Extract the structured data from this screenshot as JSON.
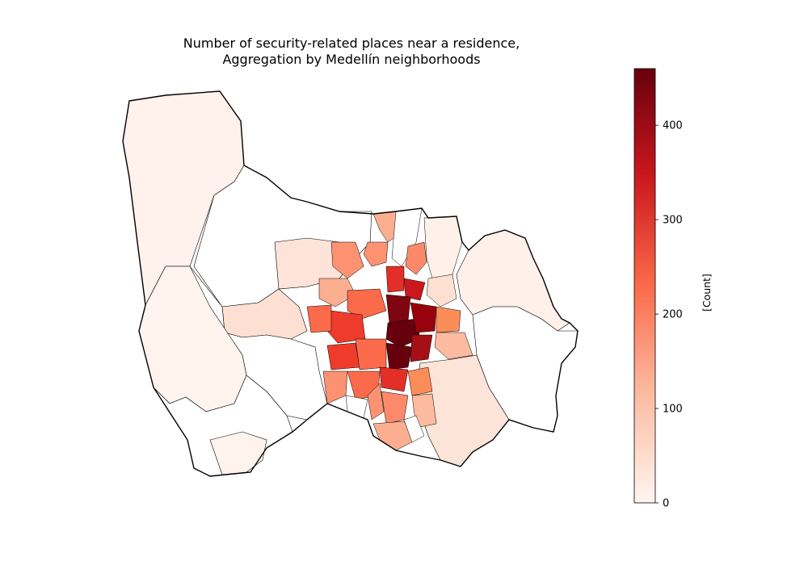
{
  "title": {
    "line1": "Number of security-related places near a residence,",
    "line2": "Aggregation by Medellín neighborhoods"
  },
  "colorbar": {
    "label": "[Count]",
    "min": 0,
    "max": 460,
    "ticks": [
      0,
      100,
      200,
      300,
      400
    ],
    "colormap": "Reds",
    "colors": [
      "#fff5f0",
      "#fcbba1",
      "#fb6a4a",
      "#cb181d",
      "#67000d"
    ]
  }
}
